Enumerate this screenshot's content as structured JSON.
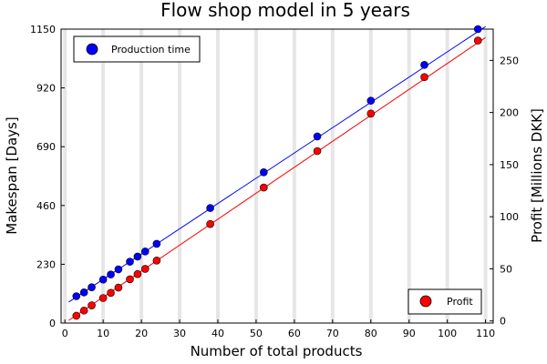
{
  "chart_data": {
    "type": "scatter",
    "title": "Flow shop model in 5 years",
    "xlabel": "Number of total products",
    "ylabel": "Makespan [Days]",
    "ylabel_right": "Profit [Millions DKK]",
    "xlim": [
      -1,
      112
    ],
    "ylim": [
      0,
      1150
    ],
    "ylim_right": [
      -2,
      280
    ],
    "x_ticks": [
      0,
      10,
      20,
      30,
      40,
      50,
      60,
      70,
      80,
      90,
      100,
      110
    ],
    "y_ticks": [
      0,
      230,
      460,
      690,
      920,
      1150
    ],
    "y_ticks_right": [
      0,
      50,
      100,
      150,
      200,
      250
    ],
    "grid": true,
    "series": [
      {
        "name": "Production time",
        "axis": "left",
        "color": "#0000ff",
        "fit_line": {
          "x": [
            1,
            110
          ],
          "y": [
            82,
            1160
          ]
        },
        "points": [
          {
            "x": 3,
            "y": 105
          },
          {
            "x": 5,
            "y": 120
          },
          {
            "x": 7,
            "y": 140
          },
          {
            "x": 10,
            "y": 170
          },
          {
            "x": 12,
            "y": 190
          },
          {
            "x": 14,
            "y": 210
          },
          {
            "x": 17,
            "y": 240
          },
          {
            "x": 19,
            "y": 260
          },
          {
            "x": 21,
            "y": 280
          },
          {
            "x": 24,
            "y": 310
          },
          {
            "x": 38,
            "y": 450
          },
          {
            "x": 52,
            "y": 590
          },
          {
            "x": 66,
            "y": 730
          },
          {
            "x": 80,
            "y": 870
          },
          {
            "x": 94,
            "y": 1010
          },
          {
            "x": 108,
            "y": 1150
          }
        ]
      },
      {
        "name": "Profit",
        "axis": "right",
        "color": "#ff0000",
        "fit_line": {
          "x": [
            1,
            110
          ],
          "y": [
            0.5,
            272
          ]
        },
        "points": [
          {
            "x": 3,
            "y": 5
          },
          {
            "x": 5,
            "y": 10
          },
          {
            "x": 7,
            "y": 15
          },
          {
            "x": 10,
            "y": 22
          },
          {
            "x": 12,
            "y": 27
          },
          {
            "x": 14,
            "y": 32
          },
          {
            "x": 17,
            "y": 40
          },
          {
            "x": 19,
            "y": 45
          },
          {
            "x": 21,
            "y": 50
          },
          {
            "x": 24,
            "y": 58
          },
          {
            "x": 38,
            "y": 93
          },
          {
            "x": 52,
            "y": 128
          },
          {
            "x": 66,
            "y": 163
          },
          {
            "x": 80,
            "y": 199
          },
          {
            "x": 94,
            "y": 234
          },
          {
            "x": 108,
            "y": 269
          }
        ]
      }
    ],
    "legends": [
      {
        "series": "Production time",
        "placement": "top-left"
      },
      {
        "series": "Profit",
        "placement": "bottom-right"
      }
    ]
  }
}
